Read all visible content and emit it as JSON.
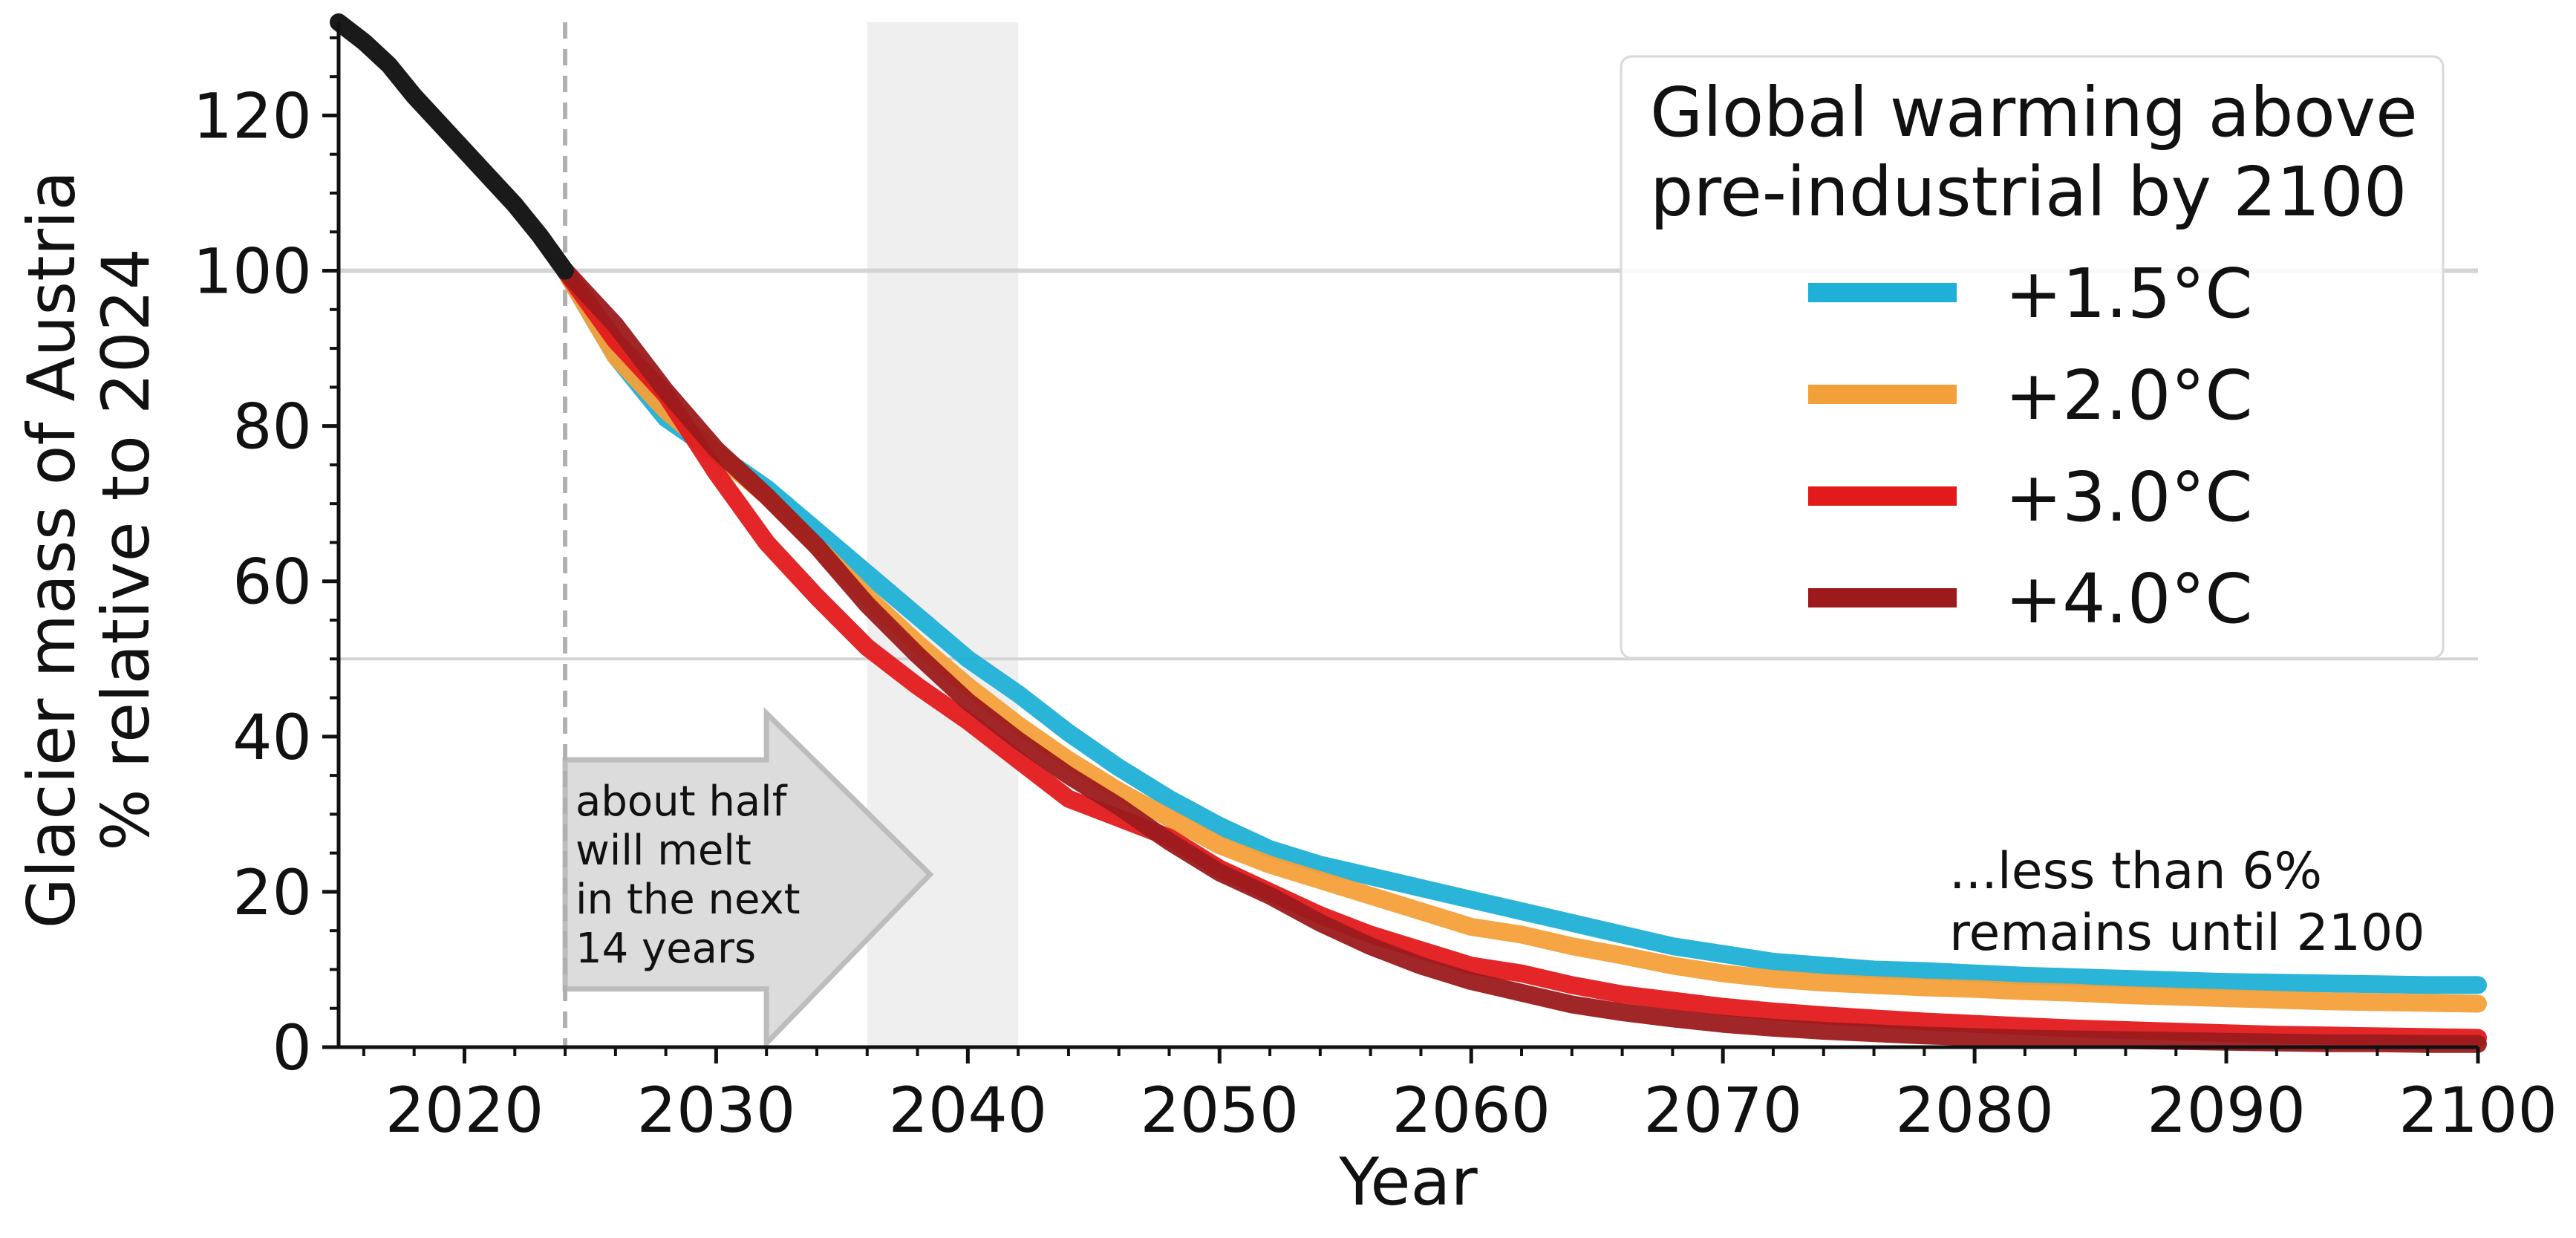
{
  "chart_data": {
    "type": "line",
    "title": "",
    "xlabel": "Year",
    "ylabel_line1": "Glacier mass of Austria",
    "ylabel_line2": "% relative to 2024",
    "xlim": [
      2015,
      2100
    ],
    "ylim": [
      0,
      132
    ],
    "xticks": [
      2020,
      2030,
      2040,
      2050,
      2060,
      2070,
      2080,
      2090,
      2100
    ],
    "yticks": [
      0,
      20,
      40,
      60,
      80,
      100,
      120
    ],
    "reference_lines_y": [
      100,
      50
    ],
    "vertical_dashed_x": 2024,
    "shaded_band_x": [
      2036,
      2042
    ],
    "historical": {
      "color": "#1a1a1a",
      "x": [
        2015,
        2016,
        2017,
        2018,
        2019,
        2020,
        2021,
        2022,
        2023,
        2024
      ],
      "y": [
        132,
        129.5,
        126.5,
        122.5,
        119,
        115.5,
        112,
        108.5,
        104.5,
        100
      ]
    },
    "series": [
      {
        "name": "+1.5°C",
        "color": "#1eb0d6",
        "x": [
          2024,
          2026,
          2028,
          2030,
          2032,
          2034,
          2036,
          2038,
          2040,
          2042,
          2044,
          2046,
          2048,
          2050,
          2052,
          2054,
          2056,
          2058,
          2060,
          2062,
          2064,
          2066,
          2068,
          2070,
          2072,
          2074,
          2076,
          2078,
          2080,
          2082,
          2084,
          2086,
          2088,
          2090,
          2092,
          2094,
          2096,
          2098,
          2100
        ],
        "y": [
          100,
          89,
          81,
          76.5,
          72,
          66.5,
          61,
          55.5,
          50,
          45.5,
          40.5,
          36,
          32,
          28.5,
          25.5,
          23.5,
          22,
          20.5,
          19,
          17.5,
          16,
          14.5,
          13,
          12,
          11,
          10.5,
          10,
          9.8,
          9.5,
          9.2,
          9,
          8.8,
          8.6,
          8.4,
          8.3,
          8.2,
          8.1,
          8.0,
          8.0
        ]
      },
      {
        "name": "+2.0°C",
        "color": "#f4a03a",
        "x": [
          2024,
          2026,
          2028,
          2030,
          2032,
          2034,
          2036,
          2038,
          2040,
          2042,
          2044,
          2046,
          2048,
          2050,
          2052,
          2054,
          2056,
          2058,
          2060,
          2062,
          2064,
          2066,
          2068,
          2070,
          2072,
          2074,
          2076,
          2078,
          2080,
          2082,
          2084,
          2086,
          2088,
          2090,
          2092,
          2094,
          2096,
          2098,
          2100
        ],
        "y": [
          100,
          89,
          82,
          76.5,
          71,
          64.5,
          58,
          52,
          46.5,
          41.5,
          37,
          33,
          29.5,
          26,
          23.5,
          21.5,
          19.5,
          17.5,
          15.5,
          14.5,
          13,
          11.8,
          10.5,
          9.5,
          8.8,
          8.3,
          8,
          7.7,
          7.5,
          7.2,
          7,
          6.7,
          6.5,
          6.3,
          6.1,
          5.9,
          5.8,
          5.7,
          5.6
        ]
      },
      {
        "name": "+3.0°C",
        "color": "#e31a1c",
        "x": [
          2024,
          2026,
          2028,
          2030,
          2032,
          2034,
          2036,
          2038,
          2040,
          2042,
          2044,
          2046,
          2048,
          2050,
          2052,
          2054,
          2056,
          2058,
          2060,
          2062,
          2064,
          2066,
          2068,
          2070,
          2072,
          2074,
          2076,
          2078,
          2080,
          2082,
          2084,
          2086,
          2088,
          2090,
          2092,
          2094,
          2096,
          2098,
          2100
        ],
        "y": [
          100,
          91,
          84,
          74,
          65,
          58,
          51.5,
          46.5,
          42,
          37,
          32,
          29.5,
          27,
          23,
          20,
          17,
          14.5,
          12.5,
          10.5,
          9.5,
          8,
          6.8,
          6,
          5.2,
          4.6,
          4.1,
          3.7,
          3.3,
          3,
          2.7,
          2.4,
          2.2,
          2,
          1.8,
          1.6,
          1.5,
          1.4,
          1.3,
          1.2
        ]
      },
      {
        "name": "+4.0°C",
        "color": "#9c1a1c",
        "x": [
          2024,
          2026,
          2028,
          2030,
          2032,
          2034,
          2036,
          2038,
          2040,
          2042,
          2044,
          2046,
          2048,
          2050,
          2052,
          2054,
          2056,
          2058,
          2060,
          2062,
          2064,
          2066,
          2068,
          2070,
          2072,
          2074,
          2076,
          2078,
          2080,
          2082,
          2084,
          2086,
          2088,
          2090,
          2092,
          2094,
          2096,
          2098,
          2100
        ],
        "y": [
          100,
          93,
          84.5,
          77,
          71,
          64.5,
          57,
          50.5,
          44.5,
          39.5,
          35,
          31,
          26.5,
          22.5,
          19.5,
          16,
          13,
          10.5,
          8.5,
          7,
          5.5,
          4.5,
          3.7,
          3,
          2.5,
          2.1,
          1.8,
          1.5,
          1.3,
          1.1,
          1,
          0.9,
          0.8,
          0.7,
          0.6,
          0.5,
          0.5,
          0.4,
          0.4
        ]
      }
    ],
    "legend": {
      "title_line1": "Global warming above",
      "title_line2": "pre-industrial by 2100",
      "placement": "top-right"
    },
    "annotations": {
      "arrow_lines": [
        "about half",
        "will melt",
        "in the next",
        "14 years"
      ],
      "right_lines": [
        "...less than 6%",
        "remains until 2100"
      ]
    }
  }
}
